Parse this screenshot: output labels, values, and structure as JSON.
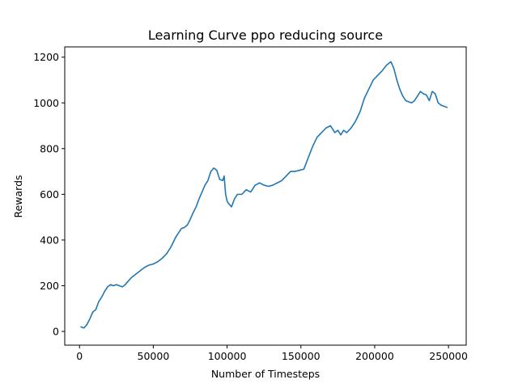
{
  "chart_data": {
    "type": "line",
    "title": "Learning Curve ppo reducing source",
    "xlabel": "Number of Timesteps",
    "ylabel": "Rewards",
    "xlim": [
      -10000,
      262000
    ],
    "ylim": [
      -60,
      1245
    ],
    "xticks": [
      0,
      50000,
      100000,
      150000,
      200000,
      250000
    ],
    "xtick_labels": [
      "0",
      "50000",
      "100000",
      "150000",
      "200000",
      "250000"
    ],
    "yticks": [
      0,
      200,
      400,
      600,
      800,
      1000,
      1200
    ],
    "ytick_labels": [
      "0",
      "200",
      "400",
      "600",
      "800",
      "1000",
      "1200"
    ],
    "grid": false,
    "legend": "none",
    "series": [
      {
        "color": "#1f77b4",
        "x": [
          1000,
          3000,
          5000,
          7000,
          9000,
          11000,
          13000,
          15000,
          17000,
          19000,
          21000,
          23000,
          25000,
          27000,
          29000,
          31000,
          33000,
          35000,
          38000,
          41000,
          44000,
          47000,
          50000,
          53000,
          56000,
          59000,
          62000,
          65000,
          67000,
          69000,
          71000,
          73000,
          75000,
          77000,
          79000,
          81000,
          83000,
          85000,
          87000,
          89000,
          91000,
          93000,
          95000,
          97000,
          98000,
          99000,
          100000,
          101000,
          103000,
          105000,
          107000,
          110000,
          113000,
          116000,
          119000,
          122000,
          125000,
          128000,
          131000,
          134000,
          137000,
          140000,
          143000,
          146000,
          149000,
          152000,
          155000,
          158000,
          161000,
          164000,
          167000,
          170000,
          173000,
          175000,
          177000,
          179000,
          181000,
          184000,
          187000,
          190000,
          193000,
          196000,
          199000,
          202000,
          205000,
          208000,
          211000,
          213000,
          215000,
          217000,
          219000,
          221000,
          223000,
          225000,
          227000,
          229000,
          231000,
          233000,
          235000,
          237000,
          239000,
          241000,
          243000,
          245000,
          247000,
          249000
        ],
        "y": [
          20,
          15,
          30,
          55,
          85,
          95,
          130,
          150,
          175,
          195,
          205,
          200,
          205,
          200,
          195,
          205,
          220,
          235,
          250,
          265,
          280,
          290,
          295,
          305,
          320,
          340,
          370,
          410,
          430,
          450,
          455,
          465,
          490,
          520,
          545,
          580,
          610,
          640,
          660,
          700,
          715,
          705,
          665,
          660,
          680,
          600,
          570,
          560,
          545,
          580,
          600,
          600,
          620,
          610,
          640,
          650,
          640,
          635,
          640,
          650,
          660,
          680,
          700,
          700,
          705,
          710,
          760,
          810,
          850,
          870,
          890,
          900,
          870,
          880,
          860,
          880,
          870,
          890,
          920,
          960,
          1020,
          1060,
          1100,
          1120,
          1140,
          1165,
          1180,
          1150,
          1100,
          1060,
          1030,
          1010,
          1005,
          1000,
          1010,
          1030,
          1050,
          1040,
          1035,
          1010,
          1050,
          1040,
          1000,
          990,
          985,
          980
        ]
      }
    ]
  }
}
